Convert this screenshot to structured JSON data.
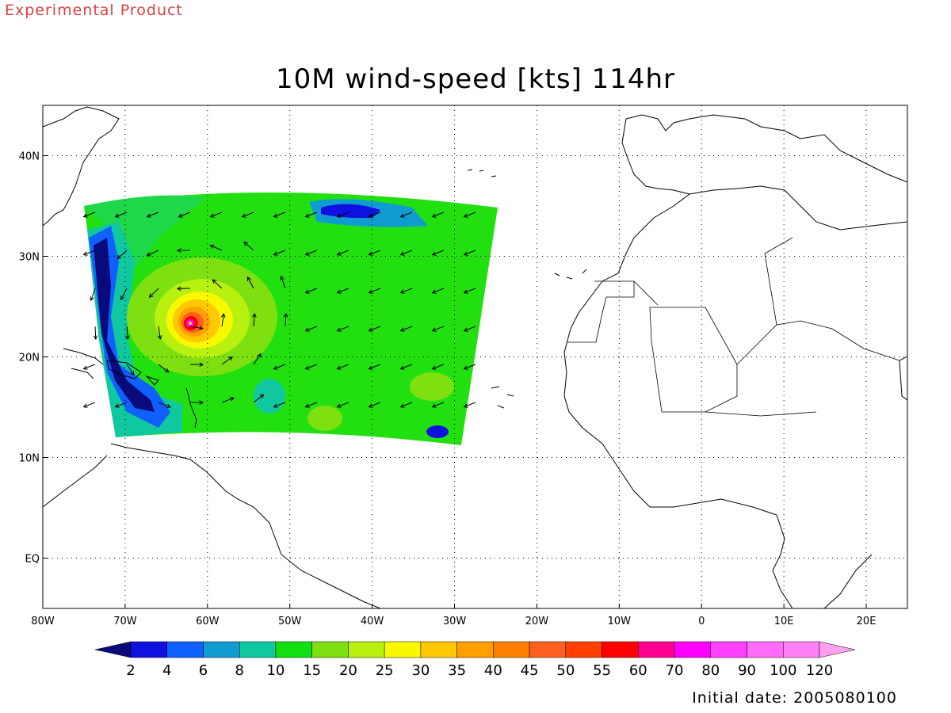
{
  "header_note": "Experimental Product",
  "title": "10M wind-speed [kts] 114hr",
  "footer_note": "Initial date: 2005080100",
  "map": {
    "lon_range": [
      -80,
      25
    ],
    "lat_range": [
      -5,
      45
    ],
    "lon_ticks": [
      {
        "value": -80,
        "label": "80W"
      },
      {
        "value": -70,
        "label": "70W"
      },
      {
        "value": -60,
        "label": "60W"
      },
      {
        "value": -50,
        "label": "50W"
      },
      {
        "value": -40,
        "label": "40W"
      },
      {
        "value": -30,
        "label": "30W"
      },
      {
        "value": -20,
        "label": "20W"
      },
      {
        "value": -10,
        "label": "10W"
      },
      {
        "value": 0,
        "label": "0"
      },
      {
        "value": 10,
        "label": "10E"
      },
      {
        "value": 20,
        "label": "20E"
      }
    ],
    "lat_ticks": [
      {
        "value": 40,
        "label": "40N"
      },
      {
        "value": 30,
        "label": "30N"
      },
      {
        "value": 20,
        "label": "20N"
      },
      {
        "value": 10,
        "label": "10N"
      },
      {
        "value": 0,
        "label": "EQ"
      }
    ],
    "grid": "dotted",
    "storm_center": {
      "lon": -62,
      "lat": 23.5
    }
  },
  "colorbar": {
    "labels": [
      "2",
      "4",
      "6",
      "8",
      "10",
      "15",
      "20",
      "25",
      "30",
      "35",
      "40",
      "45",
      "50",
      "55",
      "60",
      "70",
      "80",
      "90",
      "100",
      "120"
    ],
    "colors": [
      "#0a0a7a",
      "#1010e0",
      "#1060ff",
      "#109cd0",
      "#10c8a0",
      "#10e010",
      "#7ee010",
      "#b8f010",
      "#f8f800",
      "#ffc800",
      "#ffa000",
      "#ff8000",
      "#ff6020",
      "#ff4000",
      "#ff0000",
      "#ff0090",
      "#ff00ff",
      "#ff40ff",
      "#ff6cf8",
      "#ff80f8",
      "#ffa0f0"
    ]
  }
}
